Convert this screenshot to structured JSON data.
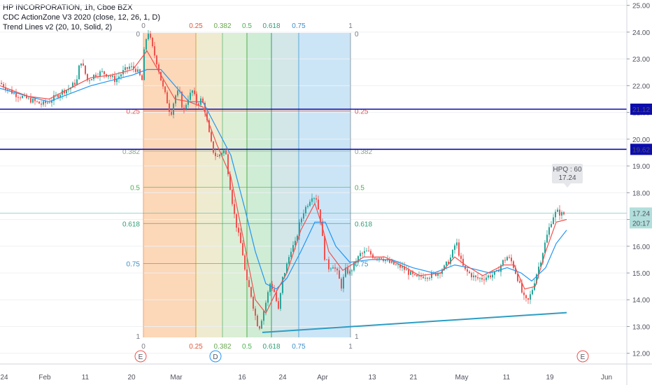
{
  "legend": {
    "line1": "HP INCORPORATION, 1h, Cboe BZX",
    "line2": "CDC ActionZone V3 2020 (close, 12, 26, 1, D)",
    "line3": "Trend Lines v2 (20, 10, Solid, 2)"
  },
  "colors": {
    "up": "#26a69a",
    "down": "#ef5350",
    "fast_ema": "#ef5350",
    "slow_ema": "#2196f3",
    "hline": "#0d0dad",
    "trendline": "#2c9dc4",
    "price_label_bg": "#b2dfdb"
  },
  "chart_data": {
    "type": "candlestick",
    "symbol": "HPQ",
    "ylim": [
      11.6,
      25.2
    ],
    "y_ticks": [
      "12.00",
      "13.00",
      "14.00",
      "15.00",
      "16.00",
      "17.00",
      "18.00",
      "19.00",
      "20.00",
      "21.00",
      "22.00",
      "23.00",
      "24.00",
      "25.00"
    ],
    "x_ticks": [
      "24",
      "Feb",
      "11",
      "20",
      "Mar",
      "16",
      "24",
      "Apr",
      "13",
      "21",
      "May",
      "11",
      "19",
      "Jun"
    ],
    "close_path": [
      [
        0,
        22.1
      ],
      [
        10,
        21.9
      ],
      [
        20,
        21.7
      ],
      [
        30,
        21.6
      ],
      [
        40,
        21.5
      ],
      [
        50,
        21.4
      ],
      [
        60,
        21.3
      ],
      [
        70,
        21.4
      ],
      [
        80,
        21.6
      ],
      [
        90,
        21.8
      ],
      [
        100,
        21.9
      ],
      [
        110,
        22.2
      ],
      [
        115,
        23.0
      ],
      [
        125,
        22.2
      ],
      [
        135,
        22.4
      ],
      [
        145,
        22.5
      ],
      [
        155,
        22.4
      ],
      [
        165,
        22.2
      ],
      [
        175,
        22.5
      ],
      [
        185,
        22.7
      ],
      [
        195,
        22.6
      ],
      [
        203,
        22.2
      ],
      [
        207,
        23.6
      ],
      [
        212,
        24.0
      ],
      [
        218,
        23.4
      ],
      [
        225,
        22.8
      ],
      [
        232,
        22.0
      ],
      [
        238,
        21.5
      ],
      [
        244,
        20.9
      ],
      [
        250,
        21.6
      ],
      [
        256,
        21.8
      ],
      [
        262,
        21.0
      ],
      [
        268,
        21.5
      ],
      [
        275,
        21.8
      ],
      [
        282,
        21.3
      ],
      [
        288,
        21.5
      ],
      [
        294,
        21.0
      ],
      [
        298,
        20.3
      ],
      [
        304,
        19.6
      ],
      [
        310,
        19.3
      ],
      [
        316,
        19.5
      ],
      [
        322,
        19.6
      ],
      [
        328,
        18.4
      ],
      [
        334,
        17.3
      ],
      [
        340,
        16.5
      ],
      [
        346,
        15.9
      ],
      [
        352,
        14.7
      ],
      [
        358,
        14.3
      ],
      [
        364,
        13.5
      ],
      [
        370,
        12.9
      ],
      [
        374,
        13.3
      ],
      [
        380,
        13.9
      ],
      [
        386,
        14.6
      ],
      [
        392,
        14.3
      ],
      [
        398,
        13.6
      ],
      [
        404,
        14.8
      ],
      [
        410,
        15.3
      ],
      [
        416,
        15.9
      ],
      [
        422,
        16.1
      ],
      [
        428,
        16.8
      ],
      [
        434,
        17.3
      ],
      [
        440,
        17.6
      ],
      [
        446,
        17.9
      ],
      [
        452,
        17.8
      ],
      [
        458,
        17.0
      ],
      [
        464,
        15.6
      ],
      [
        470,
        15.2
      ],
      [
        476,
        15.3
      ],
      [
        482,
        15.0
      ],
      [
        488,
        14.5
      ],
      [
        494,
        15.1
      ],
      [
        500,
        15.0
      ],
      [
        508,
        15.4
      ],
      [
        515,
        15.7
      ],
      [
        525,
        15.8
      ],
      [
        535,
        15.6
      ],
      [
        545,
        15.6
      ],
      [
        555,
        15.4
      ],
      [
        565,
        15.3
      ],
      [
        575,
        15.2
      ],
      [
        585,
        15.0
      ],
      [
        595,
        14.8
      ],
      [
        605,
        14.9
      ],
      [
        615,
        14.9
      ],
      [
        625,
        15.0
      ],
      [
        635,
        15.2
      ],
      [
        645,
        15.6
      ],
      [
        652,
        16.2
      ],
      [
        658,
        15.5
      ],
      [
        664,
        15.1
      ],
      [
        670,
        15.0
      ],
      [
        680,
        14.8
      ],
      [
        690,
        14.8
      ],
      [
        700,
        14.9
      ],
      [
        710,
        15.0
      ],
      [
        718,
        15.4
      ],
      [
        725,
        15.6
      ],
      [
        732,
        15.4
      ],
      [
        740,
        14.8
      ],
      [
        748,
        14.1
      ],
      [
        754,
        13.9
      ],
      [
        760,
        14.3
      ],
      [
        766,
        14.9
      ],
      [
        772,
        15.4
      ],
      [
        778,
        16.0
      ],
      [
        784,
        16.6
      ],
      [
        790,
        17.1
      ],
      [
        796,
        17.3
      ],
      [
        802,
        17.2
      ],
      [
        808,
        17.2
      ]
    ],
    "fast_ema": [
      [
        0,
        22.0
      ],
      [
        40,
        21.6
      ],
      [
        70,
        21.5
      ],
      [
        100,
        21.9
      ],
      [
        130,
        22.3
      ],
      [
        160,
        22.4
      ],
      [
        190,
        22.6
      ],
      [
        210,
        23.3
      ],
      [
        230,
        22.4
      ],
      [
        250,
        21.5
      ],
      [
        270,
        21.4
      ],
      [
        290,
        21.2
      ],
      [
        310,
        19.8
      ],
      [
        330,
        18.6
      ],
      [
        350,
        16.0
      ],
      [
        365,
        14.0
      ],
      [
        380,
        13.5
      ],
      [
        395,
        14.3
      ],
      [
        410,
        15.0
      ],
      [
        430,
        16.6
      ],
      [
        450,
        17.6
      ],
      [
        460,
        16.8
      ],
      [
        470,
        15.8
      ],
      [
        490,
        15.1
      ],
      [
        520,
        15.6
      ],
      [
        550,
        15.6
      ],
      [
        580,
        15.2
      ],
      [
        600,
        14.9
      ],
      [
        630,
        15.0
      ],
      [
        650,
        15.6
      ],
      [
        665,
        15.3
      ],
      [
        690,
        14.9
      ],
      [
        720,
        15.3
      ],
      [
        735,
        15.3
      ],
      [
        750,
        14.4
      ],
      [
        765,
        14.5
      ],
      [
        780,
        15.8
      ],
      [
        795,
        16.9
      ],
      [
        810,
        17.0
      ]
    ],
    "slow_ema": [
      [
        0,
        21.9
      ],
      [
        40,
        21.6
      ],
      [
        70,
        21.4
      ],
      [
        100,
        21.7
      ],
      [
        130,
        22.0
      ],
      [
        160,
        22.2
      ],
      [
        190,
        22.4
      ],
      [
        210,
        22.6
      ],
      [
        230,
        22.6
      ],
      [
        250,
        22.0
      ],
      [
        270,
        21.4
      ],
      [
        290,
        21.4
      ],
      [
        310,
        20.4
      ],
      [
        330,
        19.4
      ],
      [
        350,
        17.4
      ],
      [
        365,
        15.8
      ],
      [
        380,
        14.6
      ],
      [
        395,
        14.4
      ],
      [
        410,
        14.8
      ],
      [
        430,
        15.8
      ],
      [
        450,
        16.9
      ],
      [
        465,
        16.9
      ],
      [
        480,
        16.0
      ],
      [
        500,
        15.4
      ],
      [
        530,
        15.5
      ],
      [
        560,
        15.5
      ],
      [
        590,
        15.2
      ],
      [
        620,
        15.0
      ],
      [
        650,
        15.3
      ],
      [
        670,
        15.2
      ],
      [
        700,
        15.0
      ],
      [
        725,
        15.2
      ],
      [
        745,
        15.0
      ],
      [
        760,
        14.7
      ],
      [
        780,
        15.2
      ],
      [
        795,
        16.1
      ],
      [
        810,
        16.6
      ]
    ],
    "horizontal_lines": [
      {
        "value": 21.12,
        "label": "21.12"
      },
      {
        "value": 19.62,
        "label": "19.62"
      }
    ],
    "current_price": {
      "label": "17.24",
      "value": 17.24,
      "countdown": "20:17"
    },
    "callout": {
      "line1": "HPQ : 60",
      "line2": "17.24"
    },
    "trendline": {
      "from": [
        375,
        12.78
      ],
      "to": [
        810,
        13.52
      ]
    },
    "fib_time_levels": [
      "0",
      "0.25",
      "0.382",
      "0.5",
      "0.618",
      "0.75",
      "1"
    ],
    "fib_price_levels": [
      {
        "label": "0",
        "value": 24.0
      },
      {
        "label": "0.25",
        "value": 21.05
      },
      {
        "label": "0.382",
        "value": 19.55
      },
      {
        "label": "0.5",
        "value": 18.2
      },
      {
        "label": "0.618",
        "value": 16.85
      },
      {
        "label": "0.75",
        "value": 15.35
      },
      {
        "label": "1",
        "value": 12.5
      }
    ],
    "event_markers": [
      {
        "label": "E",
        "x": 201
      },
      {
        "label": "D",
        "x": 308
      },
      {
        "label": "E",
        "x": 833
      }
    ]
  }
}
